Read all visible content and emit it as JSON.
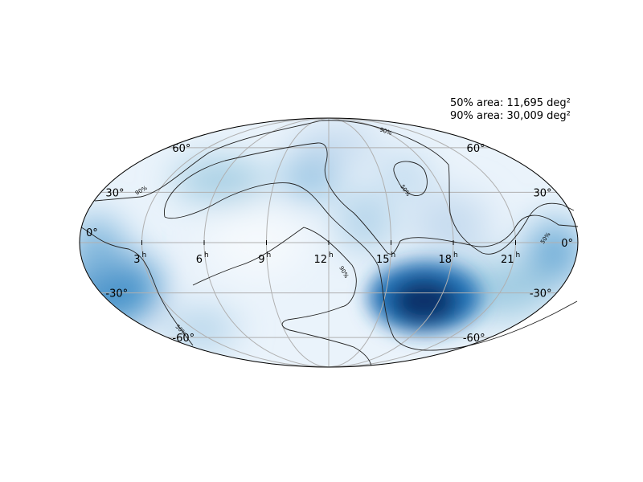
{
  "legend": {
    "area_50": "50% area: 11,695 deg²",
    "area_90": "90% area: 30,009 deg²"
  },
  "colormap": [
    "#f7fbff",
    "#deebf7",
    "#c6dbef",
    "#9ecae1",
    "#6baed6",
    "#4292c6",
    "#2171b5",
    "#08519c",
    "#08306b"
  ],
  "projection": "mollweide",
  "grid": true,
  "ra_ticks": [
    {
      "hours": 21,
      "label": "21",
      "unit": "h"
    },
    {
      "hours": 18,
      "label": "18",
      "unit": "h"
    },
    {
      "hours": 15,
      "label": "15",
      "unit": "h"
    },
    {
      "hours": 12,
      "label": "12",
      "unit": "h"
    },
    {
      "hours": 9,
      "label": "9",
      "unit": "h"
    },
    {
      "hours": 6,
      "label": "6",
      "unit": "h"
    },
    {
      "hours": 3,
      "label": "3",
      "unit": "h"
    }
  ],
  "dec_ticks": [
    {
      "deg": 60,
      "label": "60°"
    },
    {
      "deg": 30,
      "label": "30°"
    },
    {
      "deg": 0,
      "label": "0°"
    },
    {
      "deg": -30,
      "label": "-30°"
    },
    {
      "deg": -60,
      "label": "-60°"
    }
  ],
  "contours": [
    {
      "level": "50%",
      "label": "50%"
    },
    {
      "level": "90%",
      "label": "90%"
    }
  ]
}
